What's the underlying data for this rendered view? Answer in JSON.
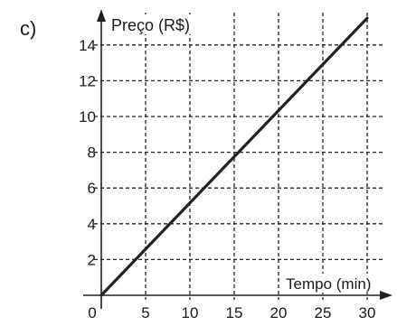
{
  "panel_label": "c)",
  "chart_data": {
    "type": "line",
    "ylabel": "Preço (R$)",
    "xlabel": "Tempo (min)",
    "x_ticks": [
      0,
      5,
      10,
      15,
      20,
      25,
      30
    ],
    "y_ticks": [
      2,
      4,
      6,
      8,
      10,
      12,
      14
    ],
    "xlim": [
      0,
      30
    ],
    "ylim": [
      0,
      14
    ],
    "grid": "dashed",
    "series": [
      {
        "x": [
          0,
          30
        ],
        "y": [
          0,
          15.5
        ]
      }
    ],
    "line_color": "#222222"
  }
}
